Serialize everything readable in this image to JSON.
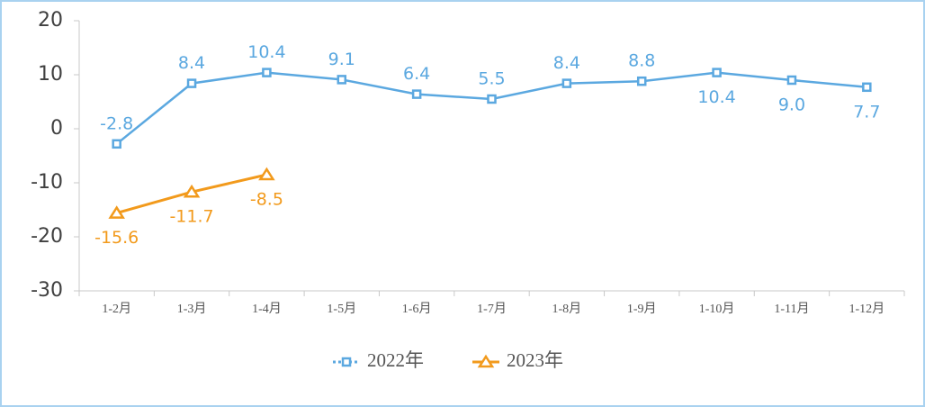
{
  "chart_data": {
    "type": "line",
    "categories": [
      "1-2月",
      "1-3月",
      "1-4月",
      "1-5月",
      "1-6月",
      "1-7月",
      "1-8月",
      "1-9月",
      "1-10月",
      "1-11月",
      "1-12月"
    ],
    "series": [
      {
        "name": "2022年",
        "color": "#5ba8e0",
        "marker": "square",
        "values": [
          -2.8,
          8.4,
          10.4,
          9.1,
          6.4,
          5.5,
          8.4,
          8.8,
          10.4,
          9.0,
          7.7
        ],
        "value_labels": [
          "-2.8",
          "8.4",
          "10.4",
          "9.1",
          "6.4",
          "5.5",
          "8.4",
          "8.8",
          "10.4",
          "9.0",
          "7.7"
        ]
      },
      {
        "name": "2023年",
        "color": "#f29a1c",
        "marker": "triangle",
        "values": [
          -15.6,
          -11.7,
          -8.5,
          null,
          null,
          null,
          null,
          null,
          null,
          null,
          null
        ],
        "value_labels": [
          "-15.6",
          "-11.7",
          "-8.5",
          null,
          null,
          null,
          null,
          null,
          null,
          null,
          null
        ]
      }
    ],
    "ylim": [
      -30,
      20
    ],
    "yticks": [
      -30,
      -20,
      -10,
      0,
      10,
      20
    ],
    "grid": false,
    "legend": "bottom"
  }
}
